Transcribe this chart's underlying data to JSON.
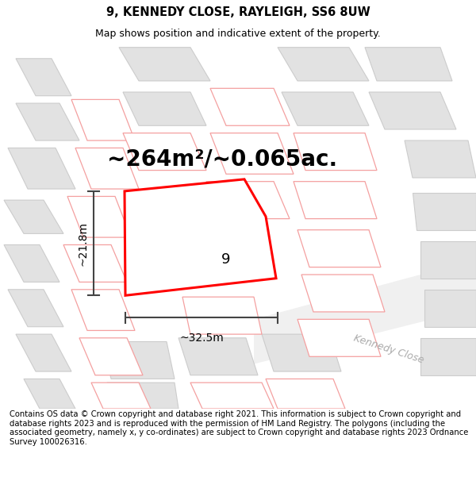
{
  "title": "9, KENNEDY CLOSE, RAYLEIGH, SS6 8UW",
  "subtitle": "Map shows position and indicative extent of the property.",
  "area_text": "~264m²/~0.065ac.",
  "plot_number": "9",
  "dim_width": "~32.5m",
  "dim_height": "~21.8m",
  "street_label": "Kennedy Close",
  "footer_text": "Contains OS data © Crown copyright and database right 2021. This information is subject to Crown copyright and database rights 2023 and is reproduced with the permission of HM Land Registry. The polygons (including the associated geometry, namely x, y co-ordinates) are subject to Crown copyright and database rights 2023 Ordnance Survey 100026316.",
  "map_bg": "#f7f7f7",
  "plot_fill": "#ffffff",
  "plot_edge": "#ff0000",
  "building_fill": "#e2e2e2",
  "building_stroke": "#cccccc",
  "neighbor_fill": "#ffffff",
  "neighbor_stroke": "#f4a0a0",
  "title_fontsize": 10.5,
  "subtitle_fontsize": 9.0,
  "area_fontsize": 20,
  "label_fontsize": 13,
  "dim_fontsize": 10,
  "street_fontsize": 9,
  "footer_fontsize": 7.2,
  "plot_lw": 2.2,
  "neighbor_lw": 0.9,
  "building_lw": 0.8
}
